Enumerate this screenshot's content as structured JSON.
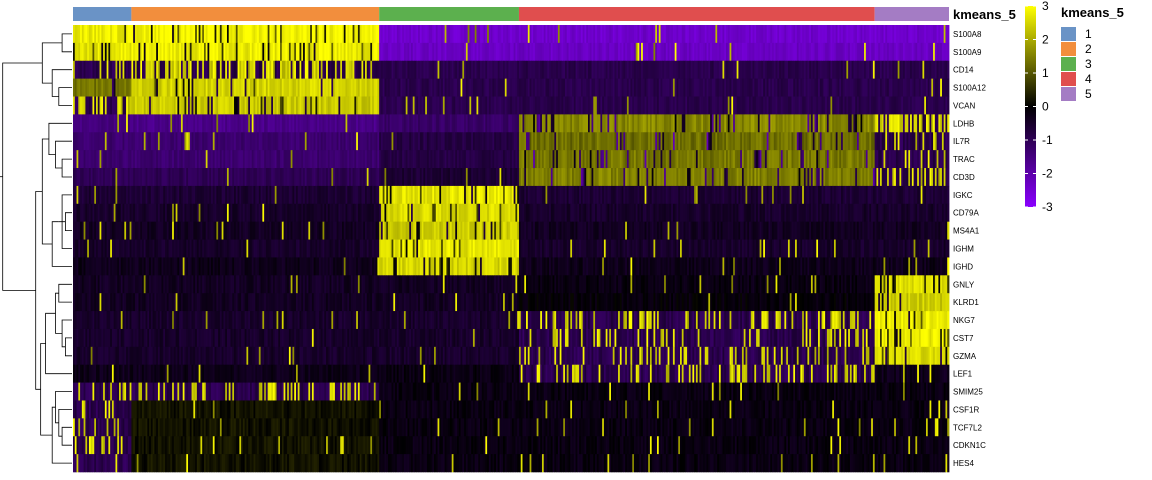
{
  "chart_data": {
    "type": "heatmap",
    "title": "",
    "annotation_name": "kmeans_5",
    "clusters": [
      {
        "id": "1",
        "color": "#6A93C6",
        "cells": 33
      },
      {
        "id": "2",
        "color": "#F28E3D",
        "cells": 140
      },
      {
        "id": "3",
        "color": "#5CB04E",
        "cells": 79
      },
      {
        "id": "4",
        "color": "#E04E4E",
        "cells": 201
      },
      {
        "id": "5",
        "color": "#A47CC4",
        "cells": 42
      }
    ],
    "genes": [
      "S100A8",
      "S100A9",
      "CD14",
      "S100A12",
      "VCAN",
      "LDHB",
      "IL7R",
      "TRAC",
      "CD3D",
      "IGKC",
      "CD79A",
      "MS4A1",
      "IGHM",
      "IGHD",
      "GNLY",
      "KLRD1",
      "NKG7",
      "CST7",
      "GZMA",
      "LEF1",
      "SMIM25",
      "CSF1R",
      "TCF7L2",
      "CDKN1C",
      "HES4"
    ],
    "mean_expression": [
      [
        2.8,
        2.9,
        -2.4,
        -2.4,
        -2.4
      ],
      [
        2.7,
        2.8,
        -2.3,
        -2.3,
        -2.3
      ],
      [
        0.8,
        1.0,
        -0.9,
        -0.9,
        -0.9
      ],
      [
        1.4,
        2.5,
        -0.9,
        -0.9,
        -0.9
      ],
      [
        1.2,
        2.4,
        -0.9,
        -0.9,
        -0.9
      ],
      [
        -1.5,
        -1.6,
        -1.2,
        1.6,
        1.2
      ],
      [
        -1.3,
        -1.3,
        -0.8,
        1.3,
        0.3
      ],
      [
        -1.3,
        -1.3,
        -0.8,
        1.4,
        0.6
      ],
      [
        -1.0,
        -1.0,
        -0.6,
        1.5,
        0.9
      ],
      [
        -0.6,
        -0.6,
        2.7,
        -0.6,
        -0.6
      ],
      [
        -0.5,
        -0.5,
        2.6,
        -0.5,
        -0.5
      ],
      [
        -0.4,
        -0.4,
        2.4,
        -0.4,
        -0.4
      ],
      [
        -0.5,
        -0.5,
        2.7,
        -0.5,
        -0.5
      ],
      [
        -0.3,
        -0.3,
        2.5,
        -0.3,
        -0.3
      ],
      [
        -0.4,
        -0.4,
        -0.4,
        -0.2,
        2.6
      ],
      [
        -0.4,
        -0.4,
        -0.4,
        -0.1,
        2.4
      ],
      [
        -0.5,
        -0.5,
        -0.5,
        0.7,
        2.8
      ],
      [
        -0.5,
        -0.5,
        -0.5,
        0.5,
        2.8
      ],
      [
        -0.5,
        -0.5,
        -0.5,
        0.5,
        2.6
      ],
      [
        -0.3,
        -0.3,
        -0.2,
        0.6,
        -0.3
      ],
      [
        0.6,
        0.6,
        -0.2,
        -0.2,
        -0.2
      ],
      [
        0.3,
        0.2,
        -0.2,
        -0.2,
        -0.2
      ],
      [
        0.4,
        0.2,
        -0.2,
        -0.2,
        -0.2
      ],
      [
        0.4,
        0.2,
        -0.2,
        -0.2,
        -0.2
      ],
      [
        0.3,
        0.2,
        -0.2,
        -0.2,
        -0.2
      ]
    ],
    "colorbar": {
      "min": -3,
      "max": 3,
      "ticks": [
        3,
        2,
        1,
        0,
        -1,
        -2,
        -3
      ],
      "stops": [
        "#FFFF00",
        "#000000",
        "#8A00FF"
      ]
    },
    "legend_placement": "right"
  }
}
